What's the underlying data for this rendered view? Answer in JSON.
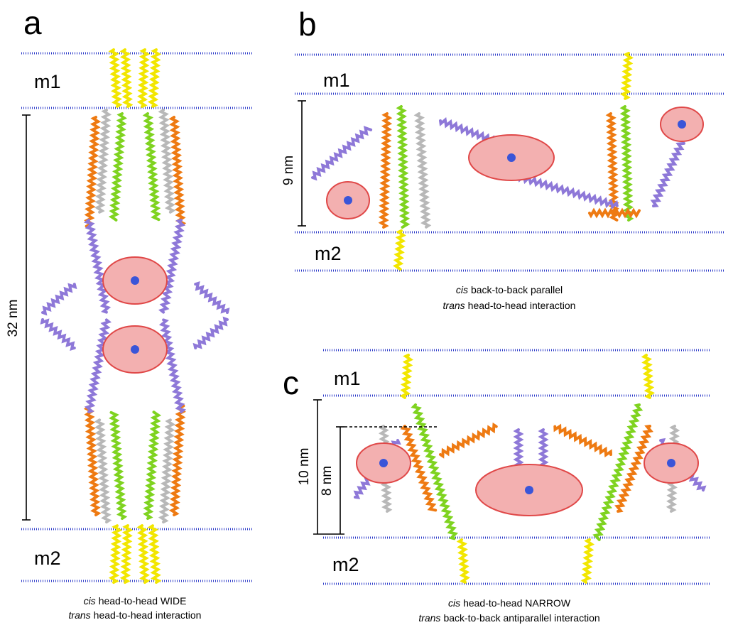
{
  "panels": [
    {
      "label": "a",
      "membranes": {
        "top": "m1",
        "bottom": "m2"
      },
      "scale_bars": [
        "32 nm"
      ],
      "caption": [
        {
          "italic": "cis",
          "text": "head-to-head WIDE"
        },
        {
          "italic": "trans",
          "text": "head-to-head interaction"
        }
      ]
    },
    {
      "label": "b",
      "membranes": {
        "top": "m1",
        "bottom": "m2"
      },
      "scale_bars": [
        "9 nm"
      ],
      "caption": [
        {
          "italic": "cis",
          "text": "back-to-back parallel"
        },
        {
          "italic": "trans",
          "text": "head-to-head interaction"
        }
      ]
    },
    {
      "label": "c",
      "membranes": {
        "top": "m1",
        "bottom": "m2"
      },
      "scale_bars": [
        "10 nm",
        "8 nm"
      ],
      "caption": [
        {
          "italic": "cis",
          "text": "head-to-head NARROW"
        },
        {
          "italic": "trans",
          "text": "back-to-back antiparallel interaction"
        }
      ]
    }
  ]
}
